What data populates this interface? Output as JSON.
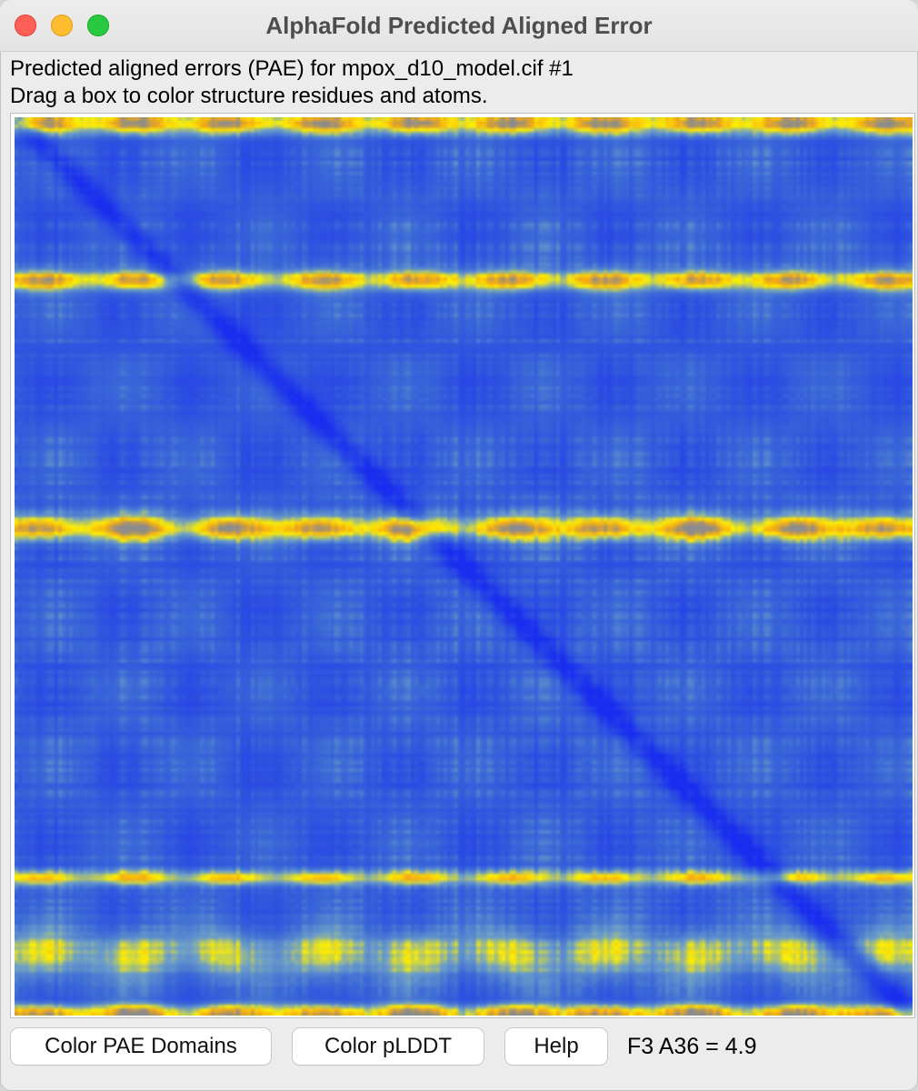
{
  "window": {
    "title": "AlphaFold Predicted Aligned Error"
  },
  "info": {
    "line1": "Predicted aligned errors (PAE) for mpox_d10_model.cif #1",
    "line2": "Drag a box to color structure residues and atoms."
  },
  "buttons": {
    "color_domains": "Color PAE Domains",
    "color_plddt": "Color pLDDT",
    "help": "Help"
  },
  "status": {
    "text": "F3 A36 = 4.9"
  },
  "heatmap": {
    "low_error_color": "#1a35f0",
    "mid_color": "#3f6ad8",
    "high_error_color": "#ffee00",
    "max_error_color": "#8a8a8a"
  }
}
